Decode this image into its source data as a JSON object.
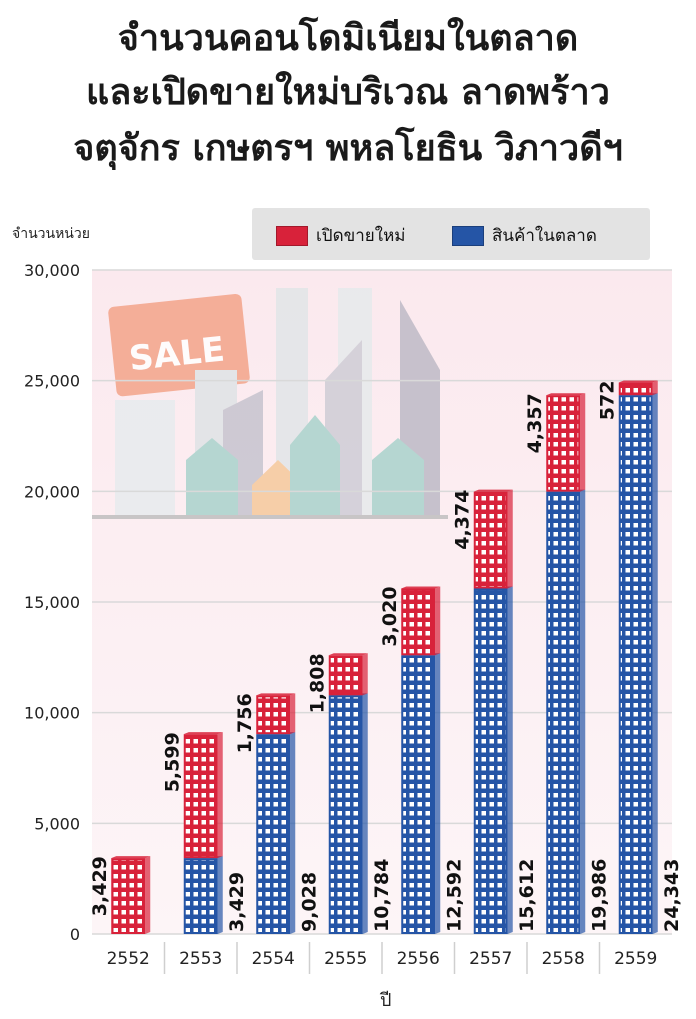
{
  "title_lines": [
    "จำนวนคอนโดมิเนียมในตลาด",
    "และเปิดขายใหม่บริเวณ ลาดพร้าว",
    "จตุจักร เกษตรฯ พหลโยธิน วิภาวดีฯ"
  ],
  "legend": {
    "new_label": "เปิดขายใหม่",
    "market_label": "สินค้าในตลาด"
  },
  "colors": {
    "new": "#d8223a",
    "market": "#2555a6",
    "grid": "#d9d9d9"
  },
  "chart_data": {
    "type": "bar",
    "stacked": true,
    "title": "จำนวนคอนโดมิเนียมในตลาด และเปิดขายใหม่บริเวณ ลาดพร้าว จตุจักร เกษตรฯ พหลโยธิน วิภาวดีฯ",
    "ylabel": "จำนวนหน่วย",
    "xlabel": "ปี",
    "ylim": [
      0,
      30000
    ],
    "yticks": [
      0,
      5000,
      10000,
      15000,
      20000,
      25000,
      30000
    ],
    "ytick_labels": [
      "0",
      "5,000",
      "10,000",
      "15,000",
      "20,000",
      "25,000",
      "30,000"
    ],
    "categories": [
      "2552",
      "2553",
      "2554",
      "2555",
      "2556",
      "2557",
      "2558",
      "2559"
    ],
    "series": [
      {
        "name": "สินค้าในตลาด",
        "values": [
          0,
          3429,
          9028,
          10784,
          12592,
          15612,
          19986,
          24343
        ],
        "labels": [
          "",
          "3,429",
          "9,028",
          "10,784",
          "12,592",
          "15,612",
          "19,986",
          "24,343"
        ]
      },
      {
        "name": "เปิดขายใหม่",
        "values": [
          3429,
          5599,
          1756,
          1808,
          3020,
          4374,
          4357,
          572
        ],
        "labels": [
          "3,429",
          "5,599",
          "1,756",
          "1,808",
          "3,020",
          "4,374",
          "4,357",
          "572"
        ]
      }
    ]
  }
}
